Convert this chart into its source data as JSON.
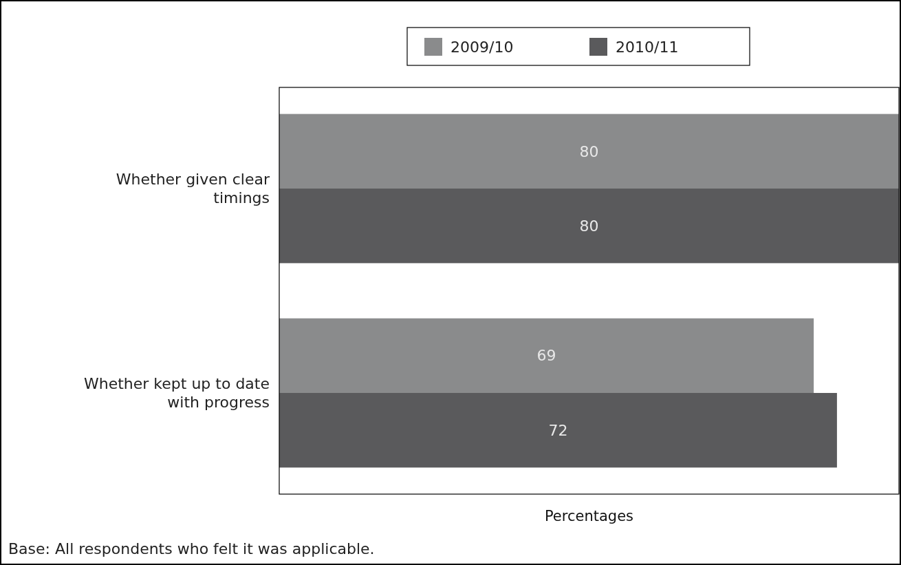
{
  "chart_data": {
    "type": "bar",
    "orientation": "horizontal",
    "xlabel": "Percentages",
    "categories": [
      "Whether given clear timings",
      "Whether kept up to date with progress"
    ],
    "series": [
      {
        "name": "2009/10",
        "color": "#8a8b8c",
        "values": [
          80,
          69
        ]
      },
      {
        "name": "2010/11",
        "color": "#5a5a5c",
        "values": [
          80,
          72
        ]
      }
    ],
    "xlim": [
      0,
      80
    ],
    "data_labels": true,
    "legend": "top",
    "grid": false,
    "annotations": [
      "Base: All respondents who felt it was applicable."
    ]
  }
}
